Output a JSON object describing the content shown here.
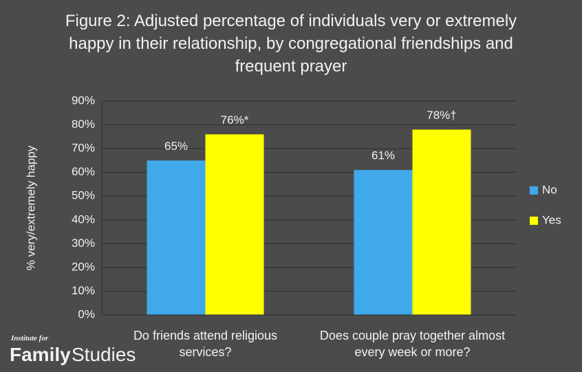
{
  "chart_data": {
    "type": "bar",
    "title": "Figure 2: Adjusted percentage of individuals very or extremely happy in their relationship, by congregational friendships and frequent prayer",
    "y_label": "% very/extremely happy",
    "categories": [
      "Do friends attend religious services?",
      "Does couple pray together almost every week or more?"
    ],
    "series": [
      {
        "name": "No",
        "color": "#3fa9ea",
        "values": [
          65,
          61
        ],
        "value_labels": [
          "65%",
          "61%"
        ]
      },
      {
        "name": "Yes",
        "color": "#ffff00",
        "values": [
          76,
          78
        ],
        "value_labels": [
          "76%*",
          "78%†"
        ]
      }
    ],
    "ylim": [
      0,
      90
    ],
    "yticks": [
      {
        "value": 0,
        "label": "0%"
      },
      {
        "value": 10,
        "label": "10%"
      },
      {
        "value": 20,
        "label": "20%"
      },
      {
        "value": 30,
        "label": "30%"
      },
      {
        "value": 40,
        "label": "40%"
      },
      {
        "value": 50,
        "label": "50%"
      },
      {
        "value": 60,
        "label": "60%"
      },
      {
        "value": 70,
        "label": "70%"
      },
      {
        "value": 80,
        "label": "80%"
      },
      {
        "value": 90,
        "label": "90%"
      }
    ],
    "grid": true,
    "legend": "right"
  },
  "logo": {
    "small": "Institute for",
    "bold": "Family",
    "light": "Studies"
  }
}
